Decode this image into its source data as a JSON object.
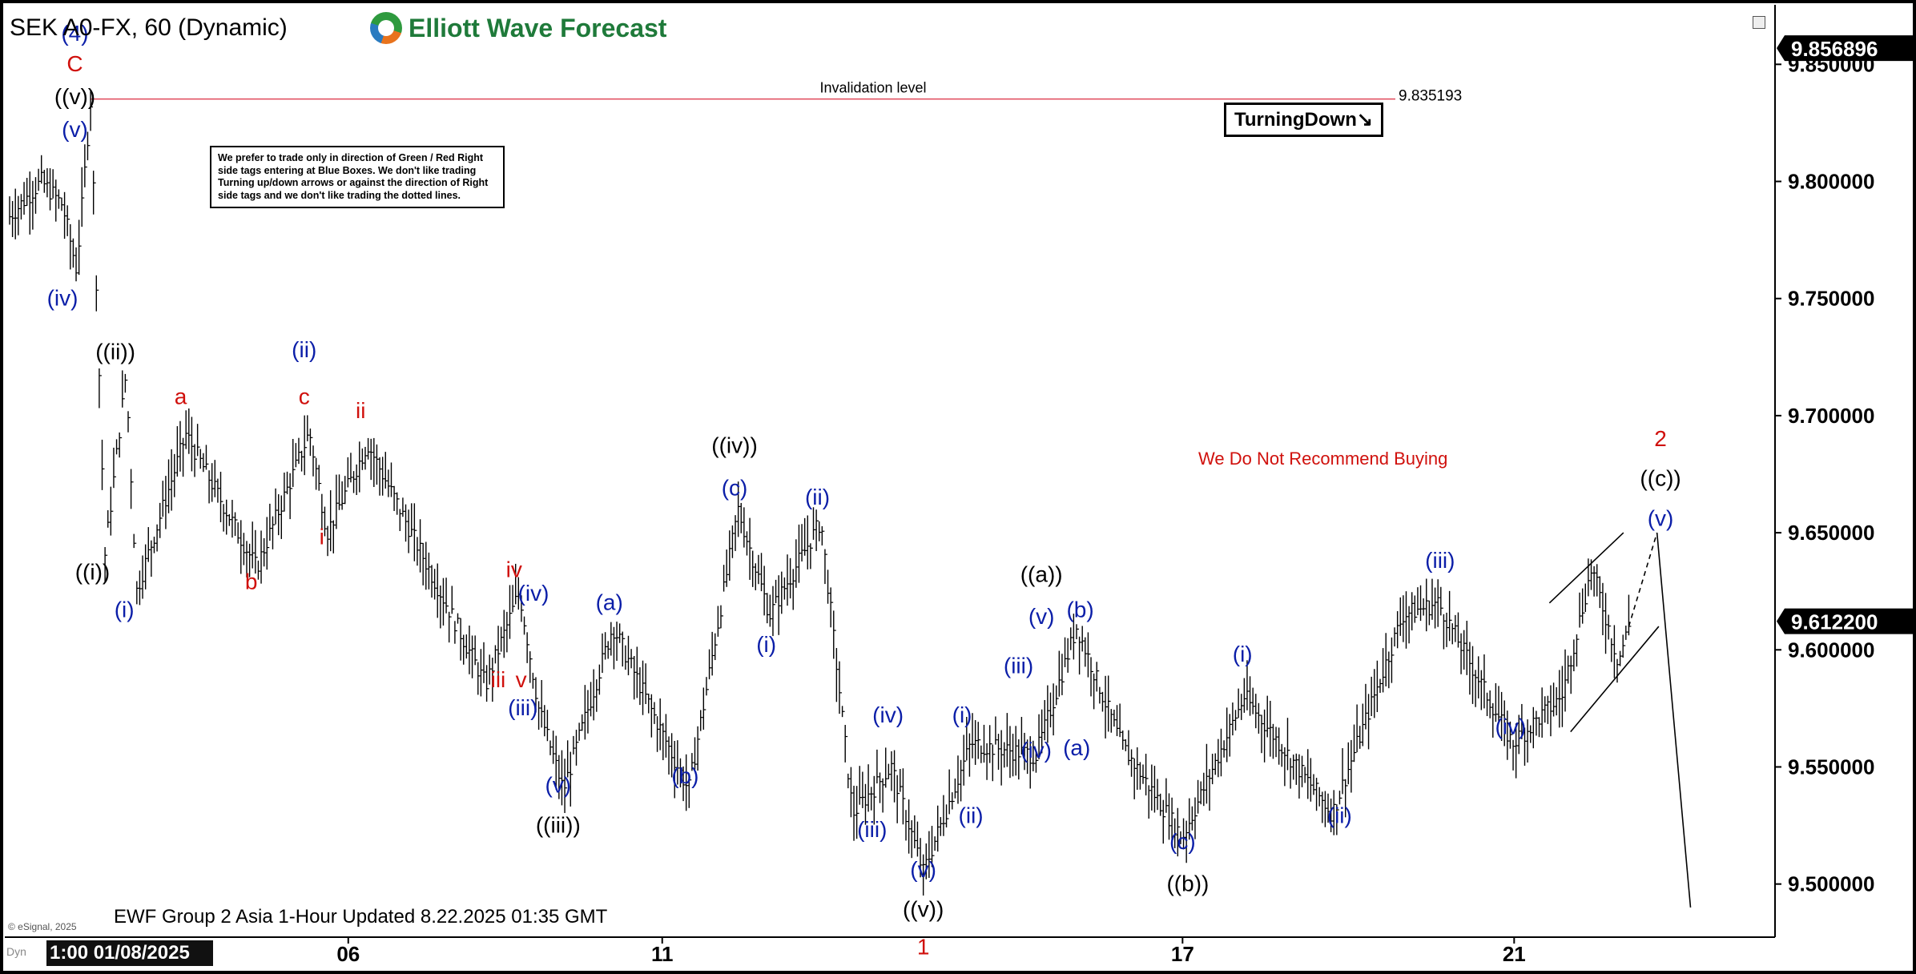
{
  "header": {
    "symbol": "SEK A0-FX, 60 (Dynamic)",
    "brand": "Elliott Wave Forecast",
    "turning_label": "TurningDown",
    "turning_arrow": "↘",
    "note": "We prefer to trade only in direction of Green / Red Right side tags entering at Blue Boxes. We don't like trading Turning up/down arrows or against the direction of Right side tags and we don't like trading the dotted lines.",
    "recommendation": "We Do Not Recommend Buying",
    "updated": "EWF Group 2 Asia 1-Hour Updated 8.22.2025 01:35 GMT",
    "source": "© eSignal, 2025",
    "dyn": "Dyn",
    "cursor_date": "1:00 01/08/2025"
  },
  "chart_data": {
    "type": "ohlc",
    "interval": "60",
    "ylim": [
      9.478,
      9.872
    ],
    "y_ticks": [
      9.5,
      9.55,
      9.6,
      9.65,
      9.7,
      9.75,
      9.8,
      9.85
    ],
    "y_tick_labels": [
      "9.500000",
      "9.550000",
      "9.600000",
      "9.650000",
      "9.700000",
      "9.750000",
      "9.800000",
      "9.850000"
    ],
    "x_ticks": [
      {
        "label": "06",
        "pos": 0.192
      },
      {
        "label": "11",
        "pos": 0.37
      },
      {
        "label": "17",
        "pos": 0.665
      },
      {
        "label": "21",
        "pos": 0.853
      }
    ],
    "last_price": {
      "value": 9.6122,
      "label": "9.612200"
    },
    "high_price": {
      "value": 9.856896,
      "label": "9.856896"
    },
    "invalidation": {
      "value": 9.835193,
      "label": "9.835193",
      "text": "Invalidation level"
    },
    "path": [
      [
        0.0,
        9.785
      ],
      [
        0.018,
        9.8
      ],
      [
        0.03,
        9.79
      ],
      [
        0.038,
        9.762
      ],
      [
        0.046,
        9.835
      ],
      [
        0.054,
        9.64
      ],
      [
        0.066,
        9.718
      ],
      [
        0.072,
        9.625
      ],
      [
        0.1,
        9.692
      ],
      [
        0.14,
        9.635
      ],
      [
        0.17,
        9.693
      ],
      [
        0.18,
        9.65
      ],
      [
        0.203,
        9.688
      ],
      [
        0.27,
        9.585
      ],
      [
        0.289,
        9.625
      ],
      [
        0.3,
        9.575
      ],
      [
        0.314,
        9.54
      ],
      [
        0.342,
        9.61
      ],
      [
        0.385,
        9.54
      ],
      [
        0.413,
        9.66
      ],
      [
        0.431,
        9.615
      ],
      [
        0.46,
        9.655
      ],
      [
        0.478,
        9.53
      ],
      [
        0.5,
        9.55
      ],
      [
        0.518,
        9.505
      ],
      [
        0.545,
        9.56
      ],
      [
        0.582,
        9.555
      ],
      [
        0.605,
        9.61
      ],
      [
        0.63,
        9.56
      ],
      [
        0.665,
        9.52
      ],
      [
        0.7,
        9.58
      ],
      [
        0.75,
        9.53
      ],
      [
        0.79,
        9.615
      ],
      [
        0.81,
        9.62
      ],
      [
        0.852,
        9.56
      ],
      [
        0.88,
        9.58
      ],
      [
        0.897,
        9.635
      ],
      [
        0.912,
        9.595
      ],
      [
        0.918,
        9.61
      ]
    ],
    "channel": {
      "upper": [
        [
          0.873,
          9.62
        ],
        [
          0.915,
          9.65
        ]
      ],
      "lower": [
        [
          0.885,
          9.565
        ],
        [
          0.935,
          9.61
        ]
      ],
      "projection": [
        [
          0.918,
          9.61
        ],
        [
          0.934,
          9.65
        ],
        [
          0.953,
          9.49
        ]
      ]
    },
    "labels": [
      {
        "text": "(4)",
        "x": 0.037,
        "y": 9.86,
        "color": "#0b1ea8"
      },
      {
        "text": "C",
        "x": 0.037,
        "y": 9.847,
        "color": "#d0100c"
      },
      {
        "text": "((v))",
        "x": 0.037,
        "y": 9.833,
        "color": "#000000"
      },
      {
        "text": "(v)",
        "x": 0.037,
        "y": 9.819,
        "color": "#0b1ea8"
      },
      {
        "text": "(iv)",
        "x": 0.03,
        "y": 9.747,
        "color": "#0b1ea8"
      },
      {
        "text": "((ii))",
        "x": 0.06,
        "y": 9.724,
        "color": "#000000"
      },
      {
        "text": "((i))",
        "x": 0.047,
        "y": 9.63,
        "color": "#000000"
      },
      {
        "text": "(i)",
        "x": 0.065,
        "y": 9.614,
        "color": "#0b1ea8"
      },
      {
        "text": "a",
        "x": 0.097,
        "y": 9.705,
        "color": "#d0100c"
      },
      {
        "text": "b",
        "x": 0.137,
        "y": 9.626,
        "color": "#d0100c"
      },
      {
        "text": "(ii)",
        "x": 0.167,
        "y": 9.725,
        "color": "#0b1ea8"
      },
      {
        "text": "c",
        "x": 0.167,
        "y": 9.705,
        "color": "#d0100c"
      },
      {
        "text": "ii",
        "x": 0.199,
        "y": 9.699,
        "color": "#d0100c"
      },
      {
        "text": "i",
        "x": 0.177,
        "y": 9.645,
        "color": "#d0100c"
      },
      {
        "text": "iv",
        "x": 0.286,
        "y": 9.631,
        "color": "#d0100c"
      },
      {
        "text": "(iv)",
        "x": 0.297,
        "y": 9.621,
        "color": "#0b1ea8"
      },
      {
        "text": "iii",
        "x": 0.277,
        "y": 9.584,
        "color": "#d0100c"
      },
      {
        "text": "v",
        "x": 0.29,
        "y": 9.584,
        "color": "#d0100c"
      },
      {
        "text": "(iii)",
        "x": 0.291,
        "y": 9.572,
        "color": "#0b1ea8"
      },
      {
        "text": "(v)",
        "x": 0.311,
        "y": 9.539,
        "color": "#0b1ea8"
      },
      {
        "text": "((iii))",
        "x": 0.311,
        "y": 9.522,
        "color": "#000000"
      },
      {
        "text": "(a)",
        "x": 0.34,
        "y": 9.617,
        "color": "#0b1ea8"
      },
      {
        "text": "(b)",
        "x": 0.383,
        "y": 9.543,
        "color": "#0b1ea8"
      },
      {
        "text": "((iv))",
        "x": 0.411,
        "y": 9.684,
        "color": "#000000"
      },
      {
        "text": "(c)",
        "x": 0.411,
        "y": 9.666,
        "color": "#0b1ea8"
      },
      {
        "text": "(ii)",
        "x": 0.458,
        "y": 9.662,
        "color": "#0b1ea8"
      },
      {
        "text": "(i)",
        "x": 0.429,
        "y": 9.599,
        "color": "#0b1ea8"
      },
      {
        "text": "(iv)",
        "x": 0.498,
        "y": 9.569,
        "color": "#0b1ea8"
      },
      {
        "text": "(iii)",
        "x": 0.489,
        "y": 9.52,
        "color": "#0b1ea8"
      },
      {
        "text": "(v)",
        "x": 0.518,
        "y": 9.503,
        "color": "#0b1ea8"
      },
      {
        "text": "((v))",
        "x": 0.518,
        "y": 9.486,
        "color": "#000000"
      },
      {
        "text": "1",
        "x": 0.518,
        "y": 9.47,
        "color": "#d0100c"
      },
      {
        "text": "(i)",
        "x": 0.54,
        "y": 9.569,
        "color": "#0b1ea8"
      },
      {
        "text": "(ii)",
        "x": 0.545,
        "y": 9.526,
        "color": "#0b1ea8"
      },
      {
        "text": "(iii)",
        "x": 0.572,
        "y": 9.59,
        "color": "#0b1ea8"
      },
      {
        "text": "(iv)",
        "x": 0.582,
        "y": 9.554,
        "color": "#0b1ea8"
      },
      {
        "text": "((a))",
        "x": 0.585,
        "y": 9.629,
        "color": "#000000"
      },
      {
        "text": "(v)",
        "x": 0.585,
        "y": 9.611,
        "color": "#0b1ea8"
      },
      {
        "text": "(b)",
        "x": 0.607,
        "y": 9.614,
        "color": "#0b1ea8"
      },
      {
        "text": "(a)",
        "x": 0.605,
        "y": 9.555,
        "color": "#0b1ea8"
      },
      {
        "text": "(c)",
        "x": 0.665,
        "y": 9.515,
        "color": "#0b1ea8"
      },
      {
        "text": "((b))",
        "x": 0.668,
        "y": 9.497,
        "color": "#000000"
      },
      {
        "text": "(i)",
        "x": 0.699,
        "y": 9.595,
        "color": "#0b1ea8"
      },
      {
        "text": "(ii)",
        "x": 0.754,
        "y": 9.526,
        "color": "#0b1ea8"
      },
      {
        "text": "(iii)",
        "x": 0.811,
        "y": 9.635,
        "color": "#0b1ea8"
      },
      {
        "text": "(iv)",
        "x": 0.851,
        "y": 9.564,
        "color": "#0b1ea8"
      },
      {
        "text": "2",
        "x": 0.936,
        "y": 9.687,
        "color": "#d0100c"
      },
      {
        "text": "((c))",
        "x": 0.936,
        "y": 9.67,
        "color": "#000000"
      },
      {
        "text": "(v)",
        "x": 0.936,
        "y": 9.653,
        "color": "#0b1ea8"
      }
    ]
  }
}
